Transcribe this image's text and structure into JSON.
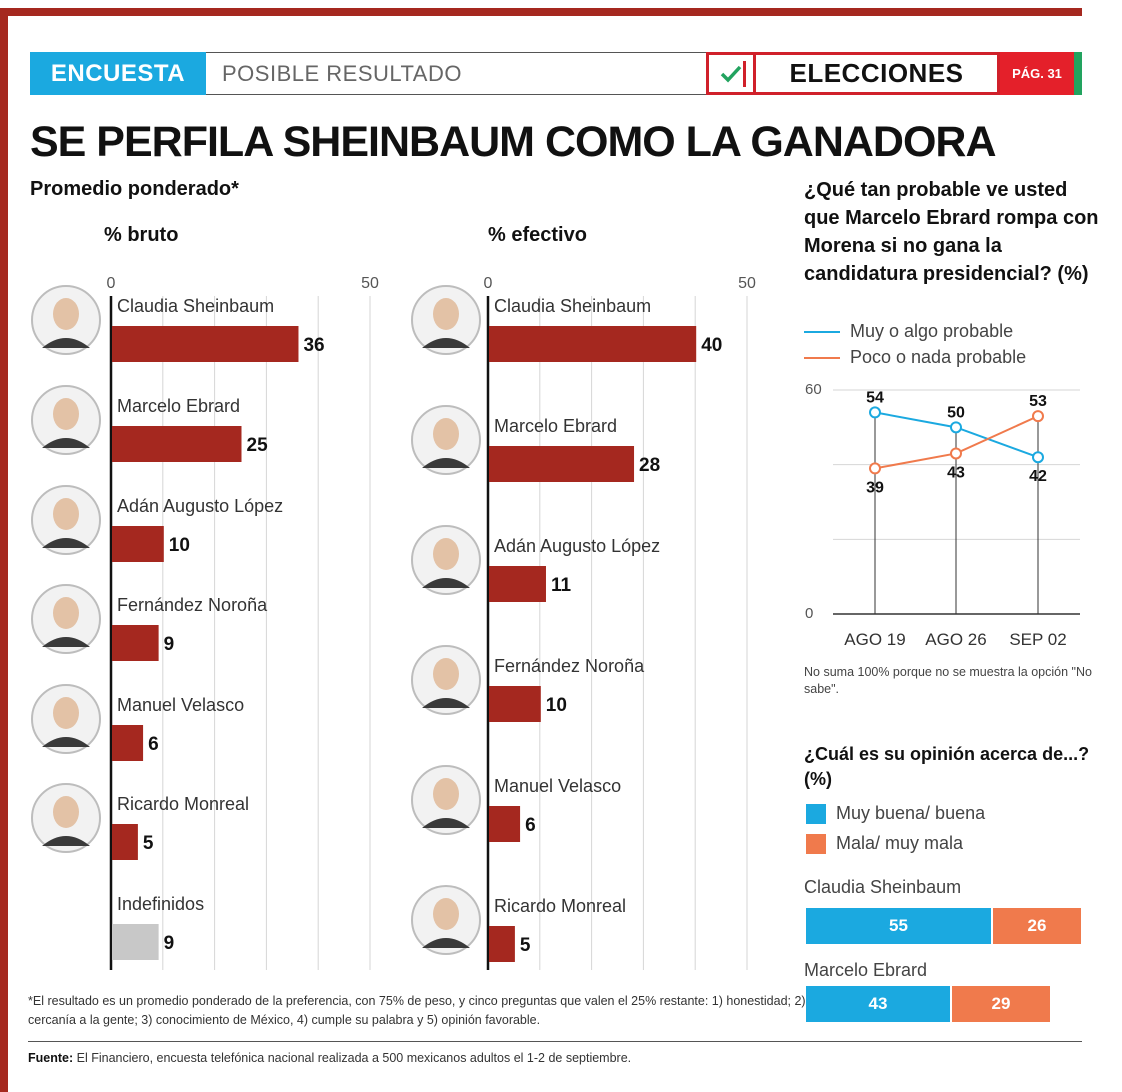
{
  "header": {
    "section": "ENCUESTA",
    "subsection": "POSIBLE RESULTADO",
    "category": "ELECCIONES",
    "page": "PÁG. 31"
  },
  "title": "SE PERFILA SHEINBAUM COMO LA GANADORA",
  "subtitle": "Promedio ponderado*",
  "colors": {
    "bar": "#a5281f",
    "undefined_bar": "#c8c8c8",
    "blue": "#1ba9e0",
    "orange": "#f07a4c",
    "red": "#d0202a"
  },
  "chart_data": [
    {
      "type": "bar",
      "orientation": "horizontal",
      "title": "% bruto",
      "xlim": [
        0,
        50
      ],
      "tick_labels": [
        "0",
        "50"
      ],
      "categories": [
        "Claudia Sheinbaum",
        "Marcelo Ebrard",
        "Adán Augusto López",
        "Fernández Noroña",
        "Manuel Velasco",
        "Ricardo Monreal",
        "Indefinidos"
      ],
      "values": [
        36,
        25,
        10,
        9,
        6,
        5,
        9
      ]
    },
    {
      "type": "bar",
      "orientation": "horizontal",
      "title": "% efectivo",
      "xlim": [
        0,
        50
      ],
      "tick_labels": [
        "0",
        "50"
      ],
      "categories": [
        "Claudia Sheinbaum",
        "Marcelo Ebrard",
        "Adán Augusto López",
        "Fernández Noroña",
        "Manuel Velasco",
        "Ricardo Monreal"
      ],
      "values": [
        40,
        28,
        11,
        10,
        6,
        5
      ]
    },
    {
      "type": "line",
      "title": "¿Qué tan probable ve usted que Marcelo Ebrard rompa con Morena si no gana la candidatura presidencial? (%)",
      "categories": [
        "AGO 19",
        "AGO 26",
        "SEP 02"
      ],
      "ylim": [
        0,
        60
      ],
      "tick_labels": [
        "0",
        "60"
      ],
      "series": [
        {
          "name": "Muy o algo probable",
          "values": [
            54,
            50,
            42
          ]
        },
        {
          "name": "Poco o nada probable",
          "values": [
            39,
            43,
            53
          ]
        }
      ]
    },
    {
      "type": "bar",
      "orientation": "horizontal-stacked",
      "title": "¿Cuál es su opinión acerca de...? (%)",
      "categories": [
        "Claudia Sheinbaum",
        "Marcelo Ebrard"
      ],
      "series": [
        {
          "name": "Muy buena/ buena",
          "values": [
            55,
            43
          ]
        },
        {
          "name": "Mala/ muy mala",
          "values": [
            26,
            29
          ]
        }
      ]
    }
  ],
  "line_note": "No suma 100% porque no se muestra la opción \"No sabe\".",
  "footnote": "*El resultado es un promedio ponderado de la preferencia, con 75% de peso, y cinco preguntas que valen el 25% restante: 1) honestidad; 2) cercanía a la gente; 3) conocimiento de México, 4) cumple su palabra y 5) opinión favorable.",
  "source_label": "Fuente:",
  "source_text": "El Financiero, encuesta telefónica nacional realizada a 500 mexicanos adultos el 1-2 de septiembre."
}
